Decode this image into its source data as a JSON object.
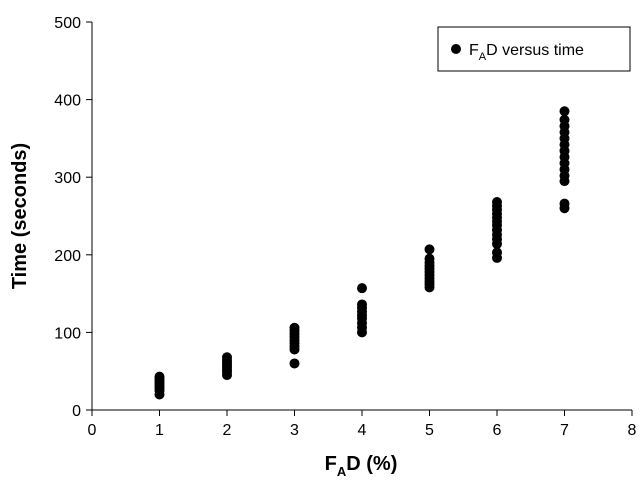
{
  "chart_data": {
    "type": "scatter",
    "title": "",
    "xlabel": {
      "main": "F",
      "sub": "A",
      "rest": "D (%)"
    },
    "ylabel": "Time (seconds)",
    "xlim": [
      0,
      8
    ],
    "ylim": [
      0,
      500
    ],
    "x_ticks": [
      "0",
      "1",
      "2",
      "3",
      "4",
      "5",
      "6",
      "7",
      "8"
    ],
    "y_ticks": [
      "0",
      "100",
      "200",
      "300",
      "400",
      "500"
    ],
    "grid": false,
    "legend_position": "top-right",
    "marker_color": "#000000",
    "series": [
      {
        "name": {
          "main": "F",
          "sub": "A",
          "rest": "D versus time"
        },
        "points": [
          {
            "x": 1,
            "y": 20
          },
          {
            "x": 1,
            "y": 25
          },
          {
            "x": 1,
            "y": 28
          },
          {
            "x": 1,
            "y": 31
          },
          {
            "x": 1,
            "y": 34
          },
          {
            "x": 1,
            "y": 37
          },
          {
            "x": 1,
            "y": 40
          },
          {
            "x": 1,
            "y": 43
          },
          {
            "x": 2,
            "y": 45
          },
          {
            "x": 2,
            "y": 49
          },
          {
            "x": 2,
            "y": 52
          },
          {
            "x": 2,
            "y": 55
          },
          {
            "x": 2,
            "y": 58
          },
          {
            "x": 2,
            "y": 61
          },
          {
            "x": 2,
            "y": 64
          },
          {
            "x": 2,
            "y": 68
          },
          {
            "x": 3,
            "y": 60
          },
          {
            "x": 3,
            "y": 78
          },
          {
            "x": 3,
            "y": 82
          },
          {
            "x": 3,
            "y": 86
          },
          {
            "x": 3,
            "y": 90
          },
          {
            "x": 3,
            "y": 94
          },
          {
            "x": 3,
            "y": 98
          },
          {
            "x": 3,
            "y": 102
          },
          {
            "x": 3,
            "y": 106
          },
          {
            "x": 4,
            "y": 100
          },
          {
            "x": 4,
            "y": 106
          },
          {
            "x": 4,
            "y": 112
          },
          {
            "x": 4,
            "y": 118
          },
          {
            "x": 4,
            "y": 122
          },
          {
            "x": 4,
            "y": 127
          },
          {
            "x": 4,
            "y": 132
          },
          {
            "x": 4,
            "y": 136
          },
          {
            "x": 4,
            "y": 157
          },
          {
            "x": 5,
            "y": 158
          },
          {
            "x": 5,
            "y": 162
          },
          {
            "x": 5,
            "y": 166
          },
          {
            "x": 5,
            "y": 170
          },
          {
            "x": 5,
            "y": 174
          },
          {
            "x": 5,
            "y": 178
          },
          {
            "x": 5,
            "y": 182
          },
          {
            "x": 5,
            "y": 186
          },
          {
            "x": 5,
            "y": 190
          },
          {
            "x": 5,
            "y": 195
          },
          {
            "x": 5,
            "y": 207
          },
          {
            "x": 6,
            "y": 196
          },
          {
            "x": 6,
            "y": 203
          },
          {
            "x": 6,
            "y": 214
          },
          {
            "x": 6,
            "y": 220
          },
          {
            "x": 6,
            "y": 226
          },
          {
            "x": 6,
            "y": 232
          },
          {
            "x": 6,
            "y": 238
          },
          {
            "x": 6,
            "y": 243
          },
          {
            "x": 6,
            "y": 248
          },
          {
            "x": 6,
            "y": 253
          },
          {
            "x": 6,
            "y": 258
          },
          {
            "x": 6,
            "y": 263
          },
          {
            "x": 6,
            "y": 268
          },
          {
            "x": 7,
            "y": 260
          },
          {
            "x": 7,
            "y": 266
          },
          {
            "x": 7,
            "y": 295
          },
          {
            "x": 7,
            "y": 302
          },
          {
            "x": 7,
            "y": 310
          },
          {
            "x": 7,
            "y": 318
          },
          {
            "x": 7,
            "y": 326
          },
          {
            "x": 7,
            "y": 334
          },
          {
            "x": 7,
            "y": 342
          },
          {
            "x": 7,
            "y": 350
          },
          {
            "x": 7,
            "y": 358
          },
          {
            "x": 7,
            "y": 366
          },
          {
            "x": 7,
            "y": 374
          },
          {
            "x": 7,
            "y": 385
          }
        ]
      }
    ]
  }
}
